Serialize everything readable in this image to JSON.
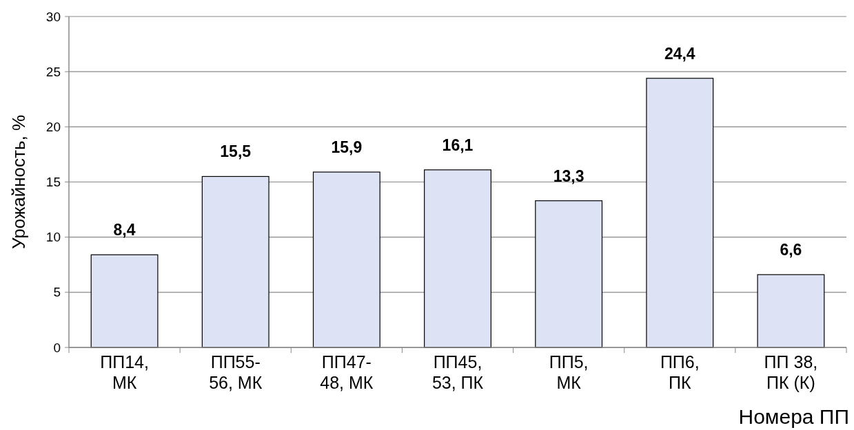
{
  "chart_data": {
    "type": "bar",
    "xlabel": "Номера ПП",
    "ylabel": "Урожайность,  %",
    "categories": [
      "ПП14, МК",
      "ПП55-56, МК",
      "ПП47-48, МК",
      "ПП45, 53, ПК",
      "ПП5, МК",
      "ПП6, ПК",
      "ПП 38, ПК (К)"
    ],
    "values": [
      8.4,
      15.5,
      15.9,
      16.1,
      13.3,
      24.4,
      6.6
    ],
    "value_labels": [
      "8,4",
      "15,5",
      "15,9",
      "16,1",
      "13,3",
      "24,4",
      "6,6"
    ],
    "color": "#dde2f4",
    "ylim": [
      0,
      30
    ],
    "yticks": [
      0,
      5,
      10,
      15,
      20,
      25,
      30
    ],
    "grid": "y"
  }
}
